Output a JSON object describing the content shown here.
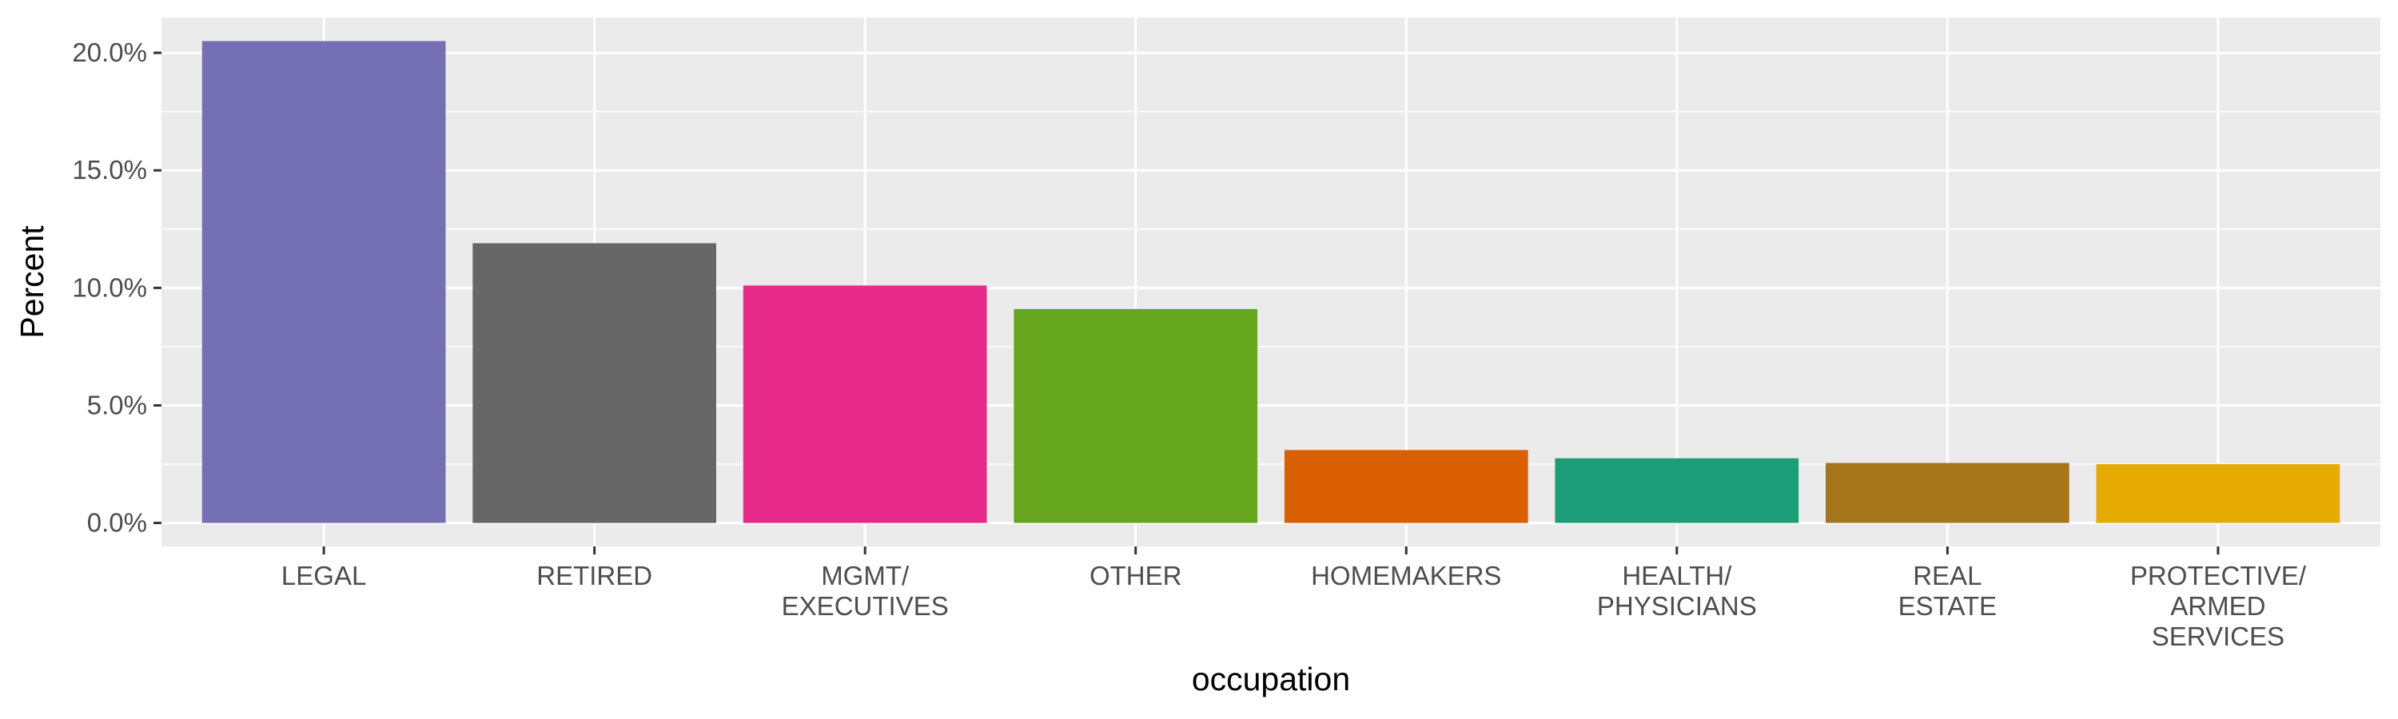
{
  "chart_data": {
    "type": "bar",
    "xlabel": "occupation",
    "ylabel": "Percent",
    "categories": [
      [
        "LEGAL"
      ],
      [
        "RETIRED"
      ],
      [
        "MGMT/",
        "EXECUTIVES"
      ],
      [
        "OTHER"
      ],
      [
        "HOMEMAKERS"
      ],
      [
        "HEALTH/",
        "PHYSICIANS"
      ],
      [
        "REAL",
        "ESTATE"
      ],
      [
        "PROTECTIVE/",
        "ARMED",
        "SERVICES"
      ]
    ],
    "values": [
      20.5,
      11.9,
      10.1,
      9.1,
      3.1,
      2.75,
      2.55,
      2.5
    ],
    "colors": [
      "#7570B3",
      "#666666",
      "#E7298A",
      "#66A61E",
      "#D95F02",
      "#1B9E77",
      "#A6761D",
      "#E6AB02"
    ],
    "yticks": [
      0,
      5,
      10,
      15,
      20
    ],
    "ytick_labels": [
      "0.0%",
      "5.0%",
      "10.0%",
      "15.0%",
      "20.0%"
    ],
    "ylim": [
      -1,
      21.5
    ],
    "grid": true,
    "legend": "none"
  }
}
